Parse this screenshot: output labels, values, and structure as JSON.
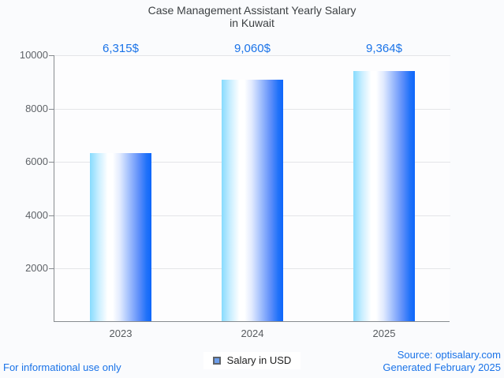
{
  "title": {
    "line1": "Case Management Assistant Yearly Salary",
    "line2": "in Kuwait"
  },
  "chart_data": {
    "type": "bar",
    "categories": [
      "2023",
      "2024",
      "2025"
    ],
    "series": [
      {
        "name": "Salary in USD",
        "values": [
          6315,
          9060,
          9364
        ]
      }
    ],
    "value_labels": [
      "6,315$",
      "9,060$",
      "9,364$"
    ],
    "title": "Case Management Assistant Yearly Salary in Kuwait",
    "xlabel": "",
    "ylabel": "",
    "ylim": [
      0,
      10000
    ],
    "yticks": [
      2000,
      4000,
      6000,
      8000,
      10000
    ],
    "grid": true,
    "legend_position": "bottom-center"
  },
  "legend": {
    "label": "Salary in USD"
  },
  "footer": {
    "disclaimer": "For informational use only",
    "source": "Source: optisalary.com",
    "generated": "Generated February 2025"
  },
  "colors": {
    "accent_blue": "#1a73e8",
    "bar_gradient_left": "#87dbfe",
    "bar_gradient_highlight": "#ffffff",
    "bar_gradient_right": "#0d66fb",
    "legend_swatch_fill": "#6d9eeb",
    "legend_swatch_border": "#5f6368",
    "gridline": "#e4e5e8",
    "axis_line": "#878b8f"
  }
}
